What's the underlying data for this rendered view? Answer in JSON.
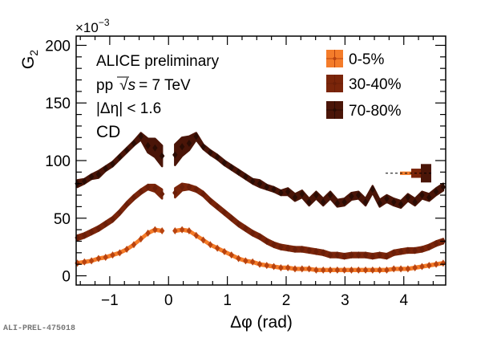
{
  "chart_data": {
    "type": "scatter",
    "title": "",
    "xlabel": "Δφ (rad)",
    "ylabel": "G",
    "ylabel_subscript": "2",
    "y_multiplier": "×10",
    "y_multiplier_exp": "−3",
    "xlim": [
      -1.5708,
      4.7124
    ],
    "ylim": [
      -8,
      208
    ],
    "xticks": [
      -1,
      0,
      1,
      2,
      3,
      4
    ],
    "xtick_labels": [
      "−1",
      "0",
      "1",
      "2",
      "3",
      "4"
    ],
    "yticks": [
      0,
      50,
      100,
      150,
      200
    ],
    "ytick_labels": [
      "0",
      "50",
      "100",
      "150",
      "200"
    ],
    "legend": {
      "placement": "top-right"
    },
    "annotations": {
      "line1": "ALICE preliminary",
      "line2_pp": "pp",
      "line2_sqrt": "√",
      "line2_s": "s",
      "line2_rest": "= 7 TeV",
      "line3": "|Δη| < 1.6",
      "line4": "CD"
    },
    "series": [
      {
        "name": "0-5%",
        "color": "#f26b1f",
        "marker_color": "#b8430f",
        "band_color": "#f47c2a",
        "x": [
          -1.55,
          -1.43,
          -1.31,
          -1.19,
          -1.07,
          -0.95,
          -0.83,
          -0.71,
          -0.59,
          -0.47,
          -0.35,
          -0.23,
          -0.11,
          0.11,
          0.23,
          0.35,
          0.47,
          0.59,
          0.71,
          0.83,
          0.95,
          1.07,
          1.19,
          1.31,
          1.43,
          1.55,
          1.67,
          1.79,
          1.91,
          2.03,
          2.15,
          2.27,
          2.39,
          2.51,
          2.63,
          2.75,
          2.87,
          2.99,
          3.11,
          3.23,
          3.35,
          3.47,
          3.59,
          3.71,
          3.83,
          3.95,
          4.07,
          4.19,
          4.31,
          4.43,
          4.55,
          4.67
        ],
        "y": [
          11,
          12,
          13,
          15,
          16,
          18,
          20,
          23,
          27,
          32,
          37,
          40,
          39,
          39,
          40,
          39,
          35,
          31,
          27,
          24,
          21,
          18,
          15,
          13,
          12,
          10,
          9,
          8,
          7,
          7,
          6,
          6,
          6,
          5,
          5,
          5,
          5,
          5,
          5,
          5,
          5,
          5,
          5,
          5,
          6,
          6,
          6,
          7,
          8,
          9,
          10,
          11
        ],
        "band_halfwidth": [
          1,
          1,
          1,
          1,
          1,
          1,
          1,
          1,
          1,
          1,
          1,
          1,
          1,
          1,
          1,
          1,
          1,
          1,
          1,
          1,
          1,
          1,
          1,
          1,
          1,
          1,
          1,
          1,
          1,
          1,
          1,
          1,
          1,
          1,
          1,
          1,
          1,
          1,
          1,
          1,
          1,
          1,
          1,
          1,
          1,
          1,
          1,
          1,
          1,
          1,
          1,
          1
        ]
      },
      {
        "name": "30-40%",
        "color": "#8b2a0a",
        "marker_color": "#6a1e08",
        "band_color": "#7a250a",
        "x": [
          -1.55,
          -1.43,
          -1.31,
          -1.19,
          -1.07,
          -0.95,
          -0.83,
          -0.71,
          -0.59,
          -0.47,
          -0.35,
          -0.23,
          -0.11,
          0.11,
          0.23,
          0.35,
          0.47,
          0.59,
          0.71,
          0.83,
          0.95,
          1.07,
          1.19,
          1.31,
          1.43,
          1.55,
          1.67,
          1.79,
          1.91,
          2.03,
          2.15,
          2.27,
          2.39,
          2.51,
          2.63,
          2.75,
          2.87,
          2.99,
          3.11,
          3.23,
          3.35,
          3.47,
          3.59,
          3.71,
          3.83,
          3.95,
          4.07,
          4.19,
          4.31,
          4.43,
          4.55,
          4.67
        ],
        "y": [
          33,
          35,
          38,
          41,
          45,
          49,
          55,
          62,
          68,
          73,
          77,
          76,
          71,
          72,
          77,
          77,
          75,
          71,
          65,
          60,
          55,
          50,
          45,
          41,
          37,
          34,
          30,
          27,
          25,
          24,
          23,
          23,
          22,
          21,
          20,
          18,
          18,
          17,
          18,
          18,
          18,
          17,
          18,
          17,
          20,
          21,
          22,
          22,
          23,
          25,
          28,
          30
        ],
        "band_halfwidth": [
          2,
          2,
          2,
          2,
          2,
          2,
          2,
          2,
          2,
          2,
          2,
          3,
          4,
          4,
          3,
          2,
          2,
          2,
          2,
          2,
          2,
          2,
          2,
          2,
          2,
          2,
          2,
          2,
          2,
          2,
          2,
          2,
          2,
          2,
          2,
          2,
          2,
          2,
          2,
          2,
          2,
          2,
          2,
          2,
          2,
          2,
          2,
          2,
          2,
          2,
          2,
          2
        ]
      },
      {
        "name": "70-80%",
        "color": "#3d1206",
        "marker_color": "#2a0c04",
        "band_color": "#4a1508",
        "x": [
          -1.55,
          -1.43,
          -1.31,
          -1.19,
          -1.07,
          -0.95,
          -0.83,
          -0.71,
          -0.59,
          -0.47,
          -0.35,
          -0.23,
          -0.11,
          0.11,
          0.23,
          0.35,
          0.47,
          0.59,
          0.71,
          0.83,
          0.95,
          1.07,
          1.19,
          1.31,
          1.43,
          1.55,
          1.67,
          1.79,
          1.91,
          2.03,
          2.15,
          2.27,
          2.39,
          2.51,
          2.63,
          2.75,
          2.87,
          2.99,
          3.11,
          3.23,
          3.35,
          3.47,
          3.59,
          3.71,
          3.83,
          3.95,
          4.07,
          4.19,
          4.31,
          4.43,
          4.55,
          4.67
        ],
        "y": [
          80,
          82,
          86,
          88,
          93,
          97,
          103,
          109,
          115,
          121,
          113,
          111,
          104,
          105,
          112,
          115,
          121,
          112,
          107,
          103,
          98,
          94,
          90,
          86,
          82,
          80,
          77,
          75,
          72,
          73,
          68,
          71,
          64,
          70,
          64,
          70,
          63,
          64,
          69,
          70,
          64,
          75,
          63,
          67,
          64,
          62,
          68,
          64,
          70,
          68,
          73,
          77
        ],
        "band_halfwidth": [
          3,
          2,
          2,
          3,
          2,
          2,
          2,
          2,
          2,
          3,
          6,
          8,
          9,
          9,
          8,
          6,
          3,
          2,
          2,
          2,
          2,
          2,
          2,
          2,
          2,
          3,
          2,
          2,
          2,
          3,
          3,
          3,
          3,
          3,
          3,
          3,
          3,
          3,
          3,
          3,
          3,
          3,
          3,
          3,
          3,
          3,
          3,
          3,
          3,
          3,
          3,
          3
        ]
      }
    ],
    "systematic_reference": {
      "y": 89,
      "boxes": [
        {
          "series": "0-5%",
          "halfheight": 1.5
        },
        {
          "series": "30-40%",
          "halfheight": 4
        },
        {
          "series": "70-80%",
          "halfheight": 8
        }
      ]
    }
  },
  "footer": {
    "id_label": "ALI-PREL-475018"
  }
}
